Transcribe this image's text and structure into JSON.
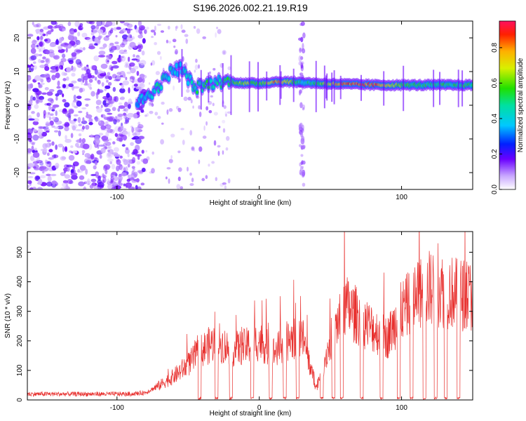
{
  "title": "S196.2026.002.21.19.R19",
  "chart_data": [
    {
      "type": "heatmap",
      "xlabel": "Height of straight line (km)",
      "ylabel": "Frequency (Hz)",
      "xlim": [
        -163,
        150
      ],
      "ylim": [
        -25,
        25
      ],
      "xticks": [
        -100,
        0,
        100
      ],
      "xtick_labels": [
        "-100",
        "0",
        "100"
      ],
      "yticks": [
        -20,
        -10,
        0,
        10,
        20
      ],
      "ytick_labels": [
        "-20",
        "-10",
        "0",
        "10",
        "20"
      ],
      "colorbar": {
        "label": "Normalized spectral amplitude",
        "range": [
          0.0,
          0.95
        ],
        "ticks": [
          0.0,
          0.2,
          0.4,
          0.6,
          0.8
        ],
        "tick_labels": [
          "0.0",
          "0.2",
          "0.4",
          "0.6",
          "0.8"
        ]
      },
      "ridge": [
        {
          "x": -84,
          "y": 1,
          "v": 0.35
        },
        {
          "x": -78,
          "y": 3,
          "v": 0.45
        },
        {
          "x": -72,
          "y": 5,
          "v": 0.5
        },
        {
          "x": -62,
          "y": 10,
          "v": 0.45
        },
        {
          "x": -55,
          "y": 11,
          "v": 0.4
        },
        {
          "x": -45,
          "y": 5,
          "v": 0.5
        },
        {
          "x": -38,
          "y": 6,
          "v": 0.55
        },
        {
          "x": -30,
          "y": 7,
          "v": 0.45
        },
        {
          "x": -20,
          "y": 7,
          "v": 0.6
        },
        {
          "x": -10,
          "y": 6.5,
          "v": 0.7
        },
        {
          "x": 0,
          "y": 6.5,
          "v": 0.6
        },
        {
          "x": 12,
          "y": 7,
          "v": 0.85
        },
        {
          "x": 20,
          "y": 7,
          "v": 0.75
        },
        {
          "x": 30,
          "y": 6.8,
          "v": 0.45
        },
        {
          "x": 42,
          "y": 6.5,
          "v": 0.6
        },
        {
          "x": 55,
          "y": 6.3,
          "v": 0.85
        },
        {
          "x": 68,
          "y": 6.2,
          "v": 0.9
        },
        {
          "x": 82,
          "y": 6.0,
          "v": 0.88
        },
        {
          "x": 95,
          "y": 6.0,
          "v": 0.7
        },
        {
          "x": 108,
          "y": 6.0,
          "v": 0.55
        },
        {
          "x": 122,
          "y": 6.0,
          "v": 0.55
        },
        {
          "x": 140,
          "y": 6.0,
          "v": 0.55
        }
      ]
    },
    {
      "type": "line",
      "xlabel": "Height of straight line (km)",
      "ylabel": "SNR (10 * v/v)",
      "xlim": [
        -163,
        150
      ],
      "ylim": [
        0,
        570
      ],
      "xticks": [
        -100,
        0,
        100
      ],
      "xtick_labels": [
        "-100",
        "0",
        "100"
      ],
      "yticks": [
        0,
        100,
        200,
        300,
        400,
        500
      ],
      "ytick_labels": [
        "0",
        "100",
        "200",
        "300",
        "400",
        "500"
      ],
      "color": "#e8312f",
      "envelope": {
        "x": [
          -163,
          -90,
          -80,
          -70,
          -60,
          -50,
          -40,
          -30,
          -20,
          -10,
          0,
          10,
          20,
          30,
          40,
          50,
          60,
          70,
          80,
          90,
          100,
          110,
          120,
          130,
          140,
          150
        ],
        "y": [
          20,
          20,
          25,
          50,
          80,
          120,
          170,
          200,
          170,
          180,
          200,
          160,
          200,
          220,
          40,
          200,
          320,
          280,
          240,
          210,
          300,
          350,
          380,
          370,
          360,
          350
        ]
      }
    }
  ]
}
